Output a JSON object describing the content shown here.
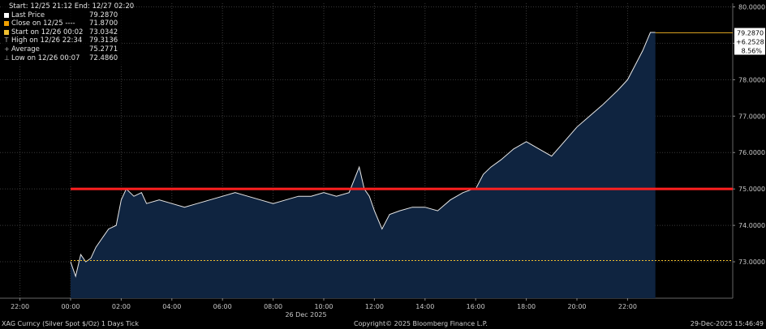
{
  "legend": {
    "header": "Start: 12/25 21:12 End: 12/27 02:20",
    "entries": [
      {
        "label": "Last Price",
        "value": "79.2870",
        "color": "#ffffff",
        "marker": "square"
      },
      {
        "label": "Close on 12/25 ----",
        "value": "71.8700",
        "color": "#f0a000",
        "marker": "square"
      },
      {
        "label": "Start on 12/26 00:02",
        "value": "73.0342",
        "color": "#f0c030",
        "marker": "square"
      },
      {
        "label": "High on 12/26 22:34",
        "value": "79.3136",
        "color": "#aaaaaa",
        "marker": "T"
      },
      {
        "label": "Average",
        "value": "75.2771",
        "color": "#aaaaaa",
        "marker": "+"
      },
      {
        "label": "Low on 12/26 00:07",
        "value": "72.4860",
        "color": "#aaaaaa",
        "marker": "⊥"
      }
    ]
  },
  "price_box": {
    "last": "79.2870",
    "change": "+6.2528",
    "pct": "8.56%"
  },
  "footer": {
    "left": "XAG Curncy (Silver Spot  $/Oz) 1 Days Tick",
    "center": "Copyright© 2025 Bloomberg Finance L.P.",
    "right": "29-Dec-2025 15:46:49"
  },
  "chart_data": {
    "type": "line",
    "x_tick_labels": [
      "22:00",
      "00:00",
      "02:00",
      "04:00",
      "06:00",
      "08:00",
      "10:00",
      "12:00",
      "14:00",
      "16:00",
      "18:00",
      "20:00",
      "22:00"
    ],
    "x_date_label": "26 Dec 2025",
    "x_hours": [
      0,
      0.2,
      0.4,
      0.6,
      0.8,
      1.0,
      1.2,
      1.5,
      1.8,
      2.0,
      2.2,
      2.5,
      2.8,
      3.0,
      3.5,
      4.0,
      4.5,
      5.0,
      5.5,
      6.0,
      6.5,
      7.0,
      7.5,
      8.0,
      8.5,
      9.0,
      9.5,
      10.0,
      10.5,
      11.0,
      11.4,
      11.6,
      11.8,
      12.0,
      12.3,
      12.6,
      13.0,
      13.5,
      14.0,
      14.5,
      15.0,
      15.5,
      15.9,
      16.0,
      16.3,
      16.6,
      17.0,
      17.5,
      18.0,
      18.5,
      19.0,
      19.5,
      20.0,
      20.5,
      21.0,
      21.3,
      21.6,
      22.0,
      22.3,
      22.6,
      22.9,
      23.1
    ],
    "values": [
      73.0,
      72.6,
      73.2,
      73.0,
      73.1,
      73.4,
      73.6,
      73.9,
      74.0,
      74.7,
      75.0,
      74.8,
      74.9,
      74.6,
      74.7,
      74.6,
      74.5,
      74.6,
      74.7,
      74.8,
      74.9,
      74.8,
      74.7,
      74.6,
      74.7,
      74.8,
      74.8,
      74.9,
      74.8,
      74.9,
      75.6,
      75.0,
      74.8,
      74.4,
      73.9,
      74.3,
      74.4,
      74.5,
      74.5,
      74.4,
      74.7,
      74.9,
      75.0,
      75.0,
      75.4,
      75.6,
      75.8,
      76.1,
      76.3,
      76.1,
      75.9,
      76.3,
      76.7,
      77.0,
      77.3,
      77.5,
      77.7,
      78.0,
      78.4,
      78.8,
      79.3,
      79.3
    ],
    "y_ticks": [
      "80.0000",
      "79.0000",
      "78.0000",
      "77.0000",
      "76.0000",
      "75.0000",
      "74.0000",
      "73.0000"
    ],
    "ylim": [
      72.0,
      80.1
    ],
    "hlines": [
      {
        "value": 75.0,
        "color": "#ff2020"
      },
      {
        "value": 73.0342,
        "color": "#f0c030"
      }
    ],
    "last_value_line": 79.287,
    "grid": true,
    "colors": {
      "line": "#e8e8e8",
      "fill": "#0f2440"
    }
  }
}
